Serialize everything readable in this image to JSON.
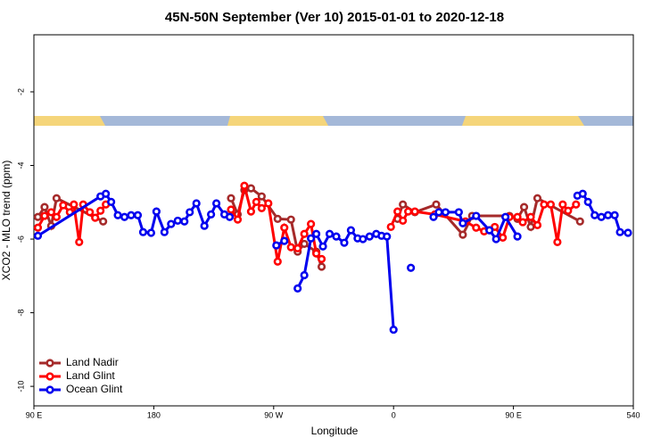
{
  "chart_data": {
    "type": "line",
    "title": "45N-50N September (Ver 10)   2015-01-01 to 2020-12-18",
    "x_label": "Longitude",
    "y_label": "XCO2 - MLO trend (ppm)",
    "xlim": [
      90,
      540
    ],
    "xticks": [
      {
        "value": 90,
        "label": "90 E"
      },
      180,
      {
        "value": 270,
        "label": "90 W"
      },
      {
        "value": 360,
        "label": "0"
      },
      {
        "value": 450,
        "label": "90 E"
      },
      540
    ],
    "ylim": [
      -10.53,
      -0.45
    ],
    "yticks": [
      -10,
      -8,
      -6,
      -4,
      -2
    ],
    "legend": "bottom-left",
    "series": [
      {
        "name": "Land Nadir",
        "color": "#a52a2a",
        "x": [
          93,
          98,
          103,
          107,
          142,
          null,
          238,
          243,
          248,
          253,
          261,
          273,
          283,
          288,
          293,
          302,
          306,
          null,
          363,
          367,
          376,
          392,
          412,
          419,
          447,
          453,
          458,
          463,
          468,
          500
        ],
        "values": [
          -5.4,
          -5.13,
          -5.64,
          -4.89,
          -5.52,
          null,
          -4.89,
          -5.33,
          -4.67,
          -4.62,
          -4.84,
          -5.45,
          -5.47,
          -6.34,
          -6.13,
          -6.34,
          -6.75,
          null,
          -5.45,
          -5.06,
          -5.27,
          -5.06,
          -5.88,
          -5.37,
          -5.37,
          -5.45,
          -5.13,
          -5.67,
          -4.89,
          -5.52
        ]
      },
      {
        "name": "Land Glint",
        "color": "#ff0000",
        "x": [
          93,
          98,
          103,
          107,
          112,
          117,
          120,
          124,
          127,
          132,
          136,
          140,
          144,
          null,
          238,
          243,
          248,
          253,
          257,
          261,
          266,
          273,
          278,
          283,
          288,
          293,
          298,
          302,
          306,
          null,
          358,
          363,
          367,
          371,
          376,
          391,
          414,
          422,
          428,
          432,
          436,
          442,
          447,
          453,
          457,
          463,
          468,
          473,
          478,
          483,
          487,
          491,
          497
        ],
        "values": [
          -5.69,
          -5.37,
          -5.27,
          -5.4,
          -5.08,
          -5.27,
          -5.06,
          -6.08,
          -5.06,
          -5.27,
          -5.42,
          -5.23,
          -5.06,
          null,
          -5.2,
          -5.47,
          -4.55,
          -5.25,
          -4.99,
          -5.16,
          -5.03,
          -6.61,
          -5.69,
          -6.22,
          -6.25,
          -5.86,
          -5.59,
          -6.39,
          -6.54,
          null,
          -5.67,
          -5.25,
          -5.5,
          -5.25,
          -5.25,
          -5.33,
          -5.52,
          -5.69,
          -5.79,
          -5.76,
          -5.67,
          -5.96,
          -5.4,
          -5.4,
          -5.54,
          -5.4,
          -5.62,
          -5.06,
          -5.06,
          -6.08,
          -5.06,
          -5.23,
          -5.06
        ]
      },
      {
        "name": "Ocean Glint",
        "color": "#0000ee",
        "x": [
          93,
          140,
          144,
          148,
          153,
          158,
          163,
          168,
          172,
          178,
          182,
          188,
          193,
          198,
          203,
          207,
          212,
          218,
          223,
          227,
          233,
          237,
          null,
          272,
          278,
          null,
          288,
          293,
          298,
          302,
          307,
          312,
          317,
          323,
          328,
          333,
          337,
          342,
          347,
          351,
          355,
          360,
          null,
          373,
          null,
          390,
          394,
          399,
          409,
          412,
          422,
          432,
          437,
          444,
          453,
          null,
          498,
          502,
          506,
          511,
          516,
          521,
          526,
          530,
          536
        ],
        "values": [
          -5.91,
          -4.84,
          -4.77,
          -4.99,
          -5.35,
          -5.4,
          -5.35,
          -5.35,
          -5.81,
          -5.83,
          -5.25,
          -5.81,
          -5.59,
          -5.5,
          -5.52,
          -5.27,
          -5.03,
          -5.64,
          -5.33,
          -5.03,
          -5.33,
          -5.4,
          null,
          -6.17,
          -6.05,
          null,
          -7.34,
          -6.98,
          -5.98,
          -5.86,
          -6.2,
          -5.86,
          -5.93,
          -6.1,
          -5.76,
          -5.98,
          -6.0,
          -5.93,
          -5.86,
          -5.91,
          -5.93,
          -8.46,
          null,
          -6.78,
          null,
          -5.4,
          -5.27,
          -5.27,
          -5.27,
          -5.57,
          -5.37,
          -5.76,
          -6.0,
          -5.4,
          -5.93,
          null,
          -4.82,
          -4.77,
          -4.99,
          -5.35,
          -5.4,
          -5.35,
          -5.35,
          -5.81,
          -5.83
        ]
      }
    ]
  }
}
